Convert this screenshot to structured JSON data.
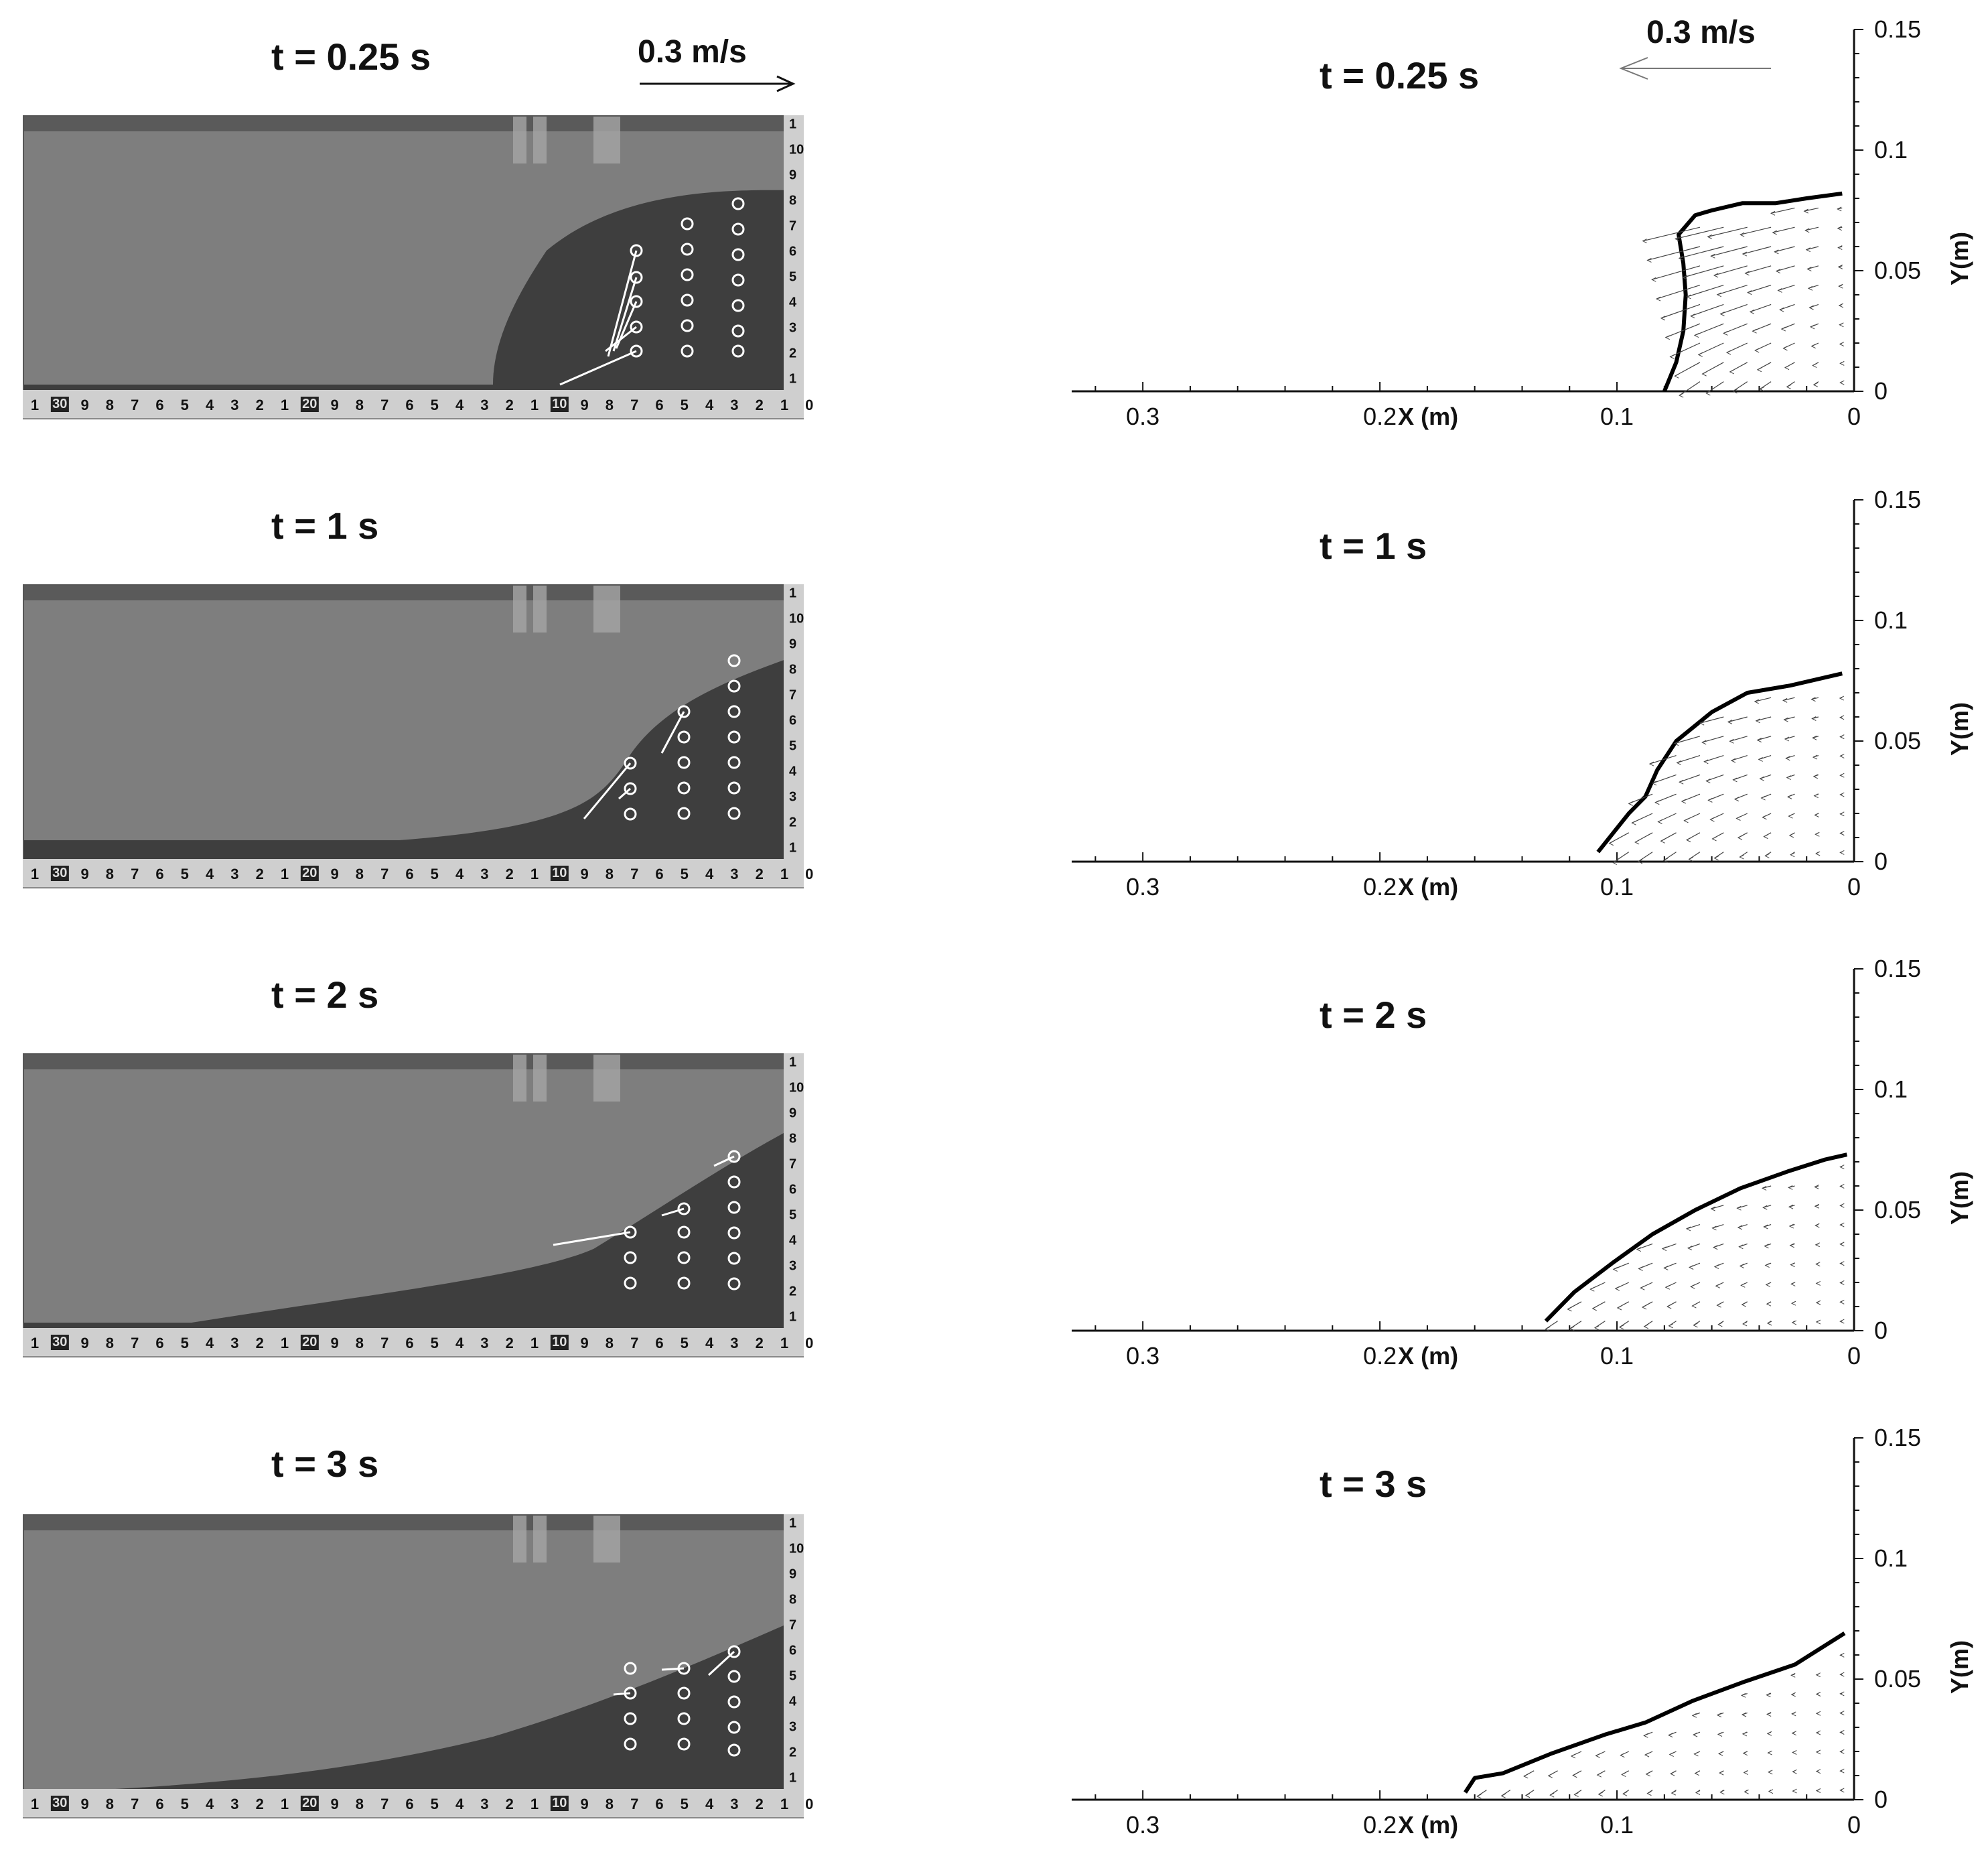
{
  "photo_panels": {
    "time_labels": [
      "t = 0.25 s",
      "t = 1 s",
      "t = 2 s",
      "t = 3 s"
    ],
    "scale_label": "0.3 m/s",
    "ruler_bottom": [
      "1",
      "30",
      "9",
      "8",
      "7",
      "6",
      "5",
      "4",
      "3",
      "2",
      "1",
      "20",
      "9",
      "8",
      "7",
      "6",
      "5",
      "4",
      "3",
      "2",
      "1",
      "10",
      "9",
      "8",
      "7",
      "6",
      "5",
      "4",
      "3",
      "2",
      "1",
      "0"
    ],
    "ruler_side": [
      "1",
      "10",
      "9",
      "8",
      "7",
      "6",
      "5",
      "4",
      "3",
      "2",
      "1",
      "0"
    ]
  },
  "chart_data": [
    {
      "type": "line",
      "title": "t = 0.25 s",
      "scale_label": "0.3 m/s",
      "xlabel": "X (m)",
      "ylabel": "Y(m)",
      "xlim": [
        0.33,
        0
      ],
      "ylim": [
        0,
        0.15
      ],
      "xticks": [
        "0.3",
        "0.2",
        "0.1",
        "0"
      ],
      "yticks": [
        "0",
        "0.05",
        "0.1",
        "0.15"
      ],
      "series": [
        {
          "x": [
            0.08,
            0.075,
            0.072,
            0.071,
            0.072,
            0.074,
            0.067,
            0.06,
            0.047,
            0.033,
            0.02,
            0.005
          ],
          "y": [
            0.0,
            0.012,
            0.025,
            0.04,
            0.053,
            0.065,
            0.073,
            0.075,
            0.078,
            0.078,
            0.08,
            0.082
          ]
        }
      ]
    },
    {
      "type": "line",
      "title": "t = 1 s",
      "xlabel": "X (m)",
      "ylabel": "Y(m)",
      "xlim": [
        0.33,
        0
      ],
      "ylim": [
        0,
        0.15
      ],
      "xticks": [
        "0.3",
        "0.2",
        "0.1",
        "0"
      ],
      "yticks": [
        "0",
        "0.05",
        "0.1",
        "0.15"
      ],
      "series": [
        {
          "x": [
            0.108,
            0.095,
            0.088,
            0.083,
            0.075,
            0.06,
            0.045,
            0.027,
            0.005
          ],
          "y": [
            0.004,
            0.02,
            0.027,
            0.038,
            0.05,
            0.062,
            0.07,
            0.073,
            0.078
          ]
        }
      ]
    },
    {
      "type": "line",
      "title": "t = 2 s",
      "xlabel": "X (m)",
      "ylabel": "Y(m)",
      "xlim": [
        0.33,
        0
      ],
      "ylim": [
        0,
        0.15
      ],
      "xticks": [
        "0.3",
        "0.2",
        "0.1",
        "0"
      ],
      "yticks": [
        "0",
        "0.05",
        "0.1",
        "0.15"
      ],
      "series": [
        {
          "x": [
            0.13,
            0.118,
            0.102,
            0.085,
            0.067,
            0.048,
            0.028,
            0.012,
            0.003
          ],
          "y": [
            0.004,
            0.016,
            0.028,
            0.04,
            0.05,
            0.059,
            0.066,
            0.071,
            0.073
          ]
        }
      ]
    },
    {
      "type": "line",
      "title": "t = 3 s",
      "xlabel": "X (m)",
      "ylabel": "Y(m)",
      "xlim": [
        0.33,
        0
      ],
      "ylim": [
        0,
        0.15
      ],
      "xticks": [
        "0.3",
        "0.2",
        "0.1",
        "0"
      ],
      "yticks": [
        "0",
        "0.05",
        "0.1",
        "0.15"
      ],
      "series": [
        {
          "x": [
            0.164,
            0.16,
            0.148,
            0.128,
            0.105,
            0.088,
            0.068,
            0.046,
            0.025,
            0.004
          ],
          "y": [
            0.003,
            0.009,
            0.011,
            0.019,
            0.027,
            0.032,
            0.041,
            0.049,
            0.056,
            0.069
          ]
        }
      ]
    }
  ]
}
